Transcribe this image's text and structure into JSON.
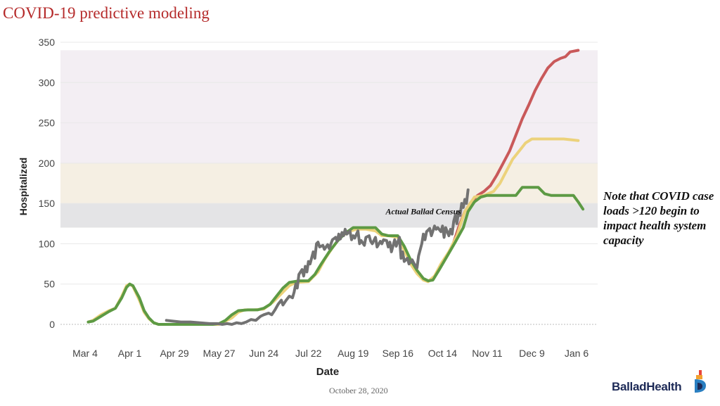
{
  "title": "COVID-19 predictive modeling",
  "note": "Note that COVID case loads >120 begin to impact health system capacity",
  "footer_date": "October 28, 2020",
  "logo": {
    "text": "BalladHealth",
    "lettering": "Ballad Health"
  },
  "colors": {
    "title": "#b52a2a",
    "band_high": "#f3eef3",
    "band_mid": "#f5efe3",
    "band_low": "#e4e4e6",
    "red": "#c9595a",
    "yellow": "#ecd27b",
    "green": "#5d9a44",
    "gray": "#727272"
  },
  "chart_data": {
    "type": "line",
    "title": "COVID-19 predictive modeling",
    "xlabel": "Date",
    "ylabel": "Hospitalized",
    "x_unit": "days since Mar 4, 2020",
    "xlim": [
      0,
      308
    ],
    "ylim": [
      0,
      350
    ],
    "yticks": [
      0,
      50,
      100,
      150,
      200,
      250,
      300,
      350
    ],
    "xticks": [
      {
        "label": "Mar 4",
        "x": 0
      },
      {
        "label": "Apr 1",
        "x": 28
      },
      {
        "label": "Apr 29",
        "x": 56
      },
      {
        "label": "May 27",
        "x": 84
      },
      {
        "label": "Jun 24",
        "x": 112
      },
      {
        "label": "Jul 22",
        "x": 140
      },
      {
        "label": "Aug 19",
        "x": 168
      },
      {
        "label": "Sep 16",
        "x": 196
      },
      {
        "label": "Oct 14",
        "x": 224
      },
      {
        "label": "Nov 11",
        "x": 252
      },
      {
        "label": "Dec 9",
        "x": 280
      },
      {
        "label": "Jan 6",
        "x": 308
      }
    ],
    "bands": [
      {
        "from": 120,
        "to": 150,
        "color": "#e4e4e6"
      },
      {
        "from": 150,
        "to": 200,
        "color": "#f5efe3"
      },
      {
        "from": 200,
        "to": 340,
        "color": "#f3eef3"
      }
    ],
    "annotations": [
      {
        "text": "Actual Ballad Census",
        "x": 212,
        "y": 140
      }
    ],
    "grid": true,
    "series": [
      {
        "name": "Red projection",
        "color": "#c9595a",
        "points": [
          [
            230,
            96
          ],
          [
            234,
            120
          ],
          [
            238,
            140
          ],
          [
            242,
            152
          ],
          [
            246,
            160
          ],
          [
            250,
            165
          ],
          [
            254,
            172
          ],
          [
            258,
            185
          ],
          [
            262,
            200
          ],
          [
            266,
            215
          ],
          [
            270,
            235
          ],
          [
            274,
            255
          ],
          [
            278,
            272
          ],
          [
            282,
            290
          ],
          [
            286,
            305
          ],
          [
            290,
            318
          ],
          [
            294,
            326
          ],
          [
            298,
            330
          ],
          [
            301,
            332
          ],
          [
            304,
            338
          ],
          [
            309,
            340
          ]
        ]
      },
      {
        "name": "Yellow projection",
        "color": "#ecd27b",
        "points": [
          [
            2,
            3
          ],
          [
            5,
            5
          ],
          [
            10,
            12
          ],
          [
            15,
            17
          ],
          [
            19,
            20
          ],
          [
            23,
            35
          ],
          [
            26,
            48
          ],
          [
            28,
            50
          ],
          [
            30,
            47
          ],
          [
            34,
            30
          ],
          [
            37,
            15
          ],
          [
            40,
            7
          ],
          [
            43,
            2
          ],
          [
            46,
            0
          ],
          [
            60,
            0
          ],
          [
            84,
            0
          ],
          [
            92,
            8
          ],
          [
            96,
            15
          ],
          [
            100,
            18
          ],
          [
            106,
            18
          ],
          [
            112,
            19
          ],
          [
            118,
            28
          ],
          [
            124,
            40
          ],
          [
            128,
            48
          ],
          [
            132,
            52
          ],
          [
            140,
            53
          ],
          [
            146,
            65
          ],
          [
            150,
            80
          ],
          [
            155,
            95
          ],
          [
            160,
            108
          ],
          [
            165,
            115
          ],
          [
            170,
            118
          ],
          [
            176,
            118
          ],
          [
            182,
            116
          ],
          [
            186,
            110
          ],
          [
            190,
            110
          ],
          [
            196,
            108
          ],
          [
            200,
            92
          ],
          [
            204,
            75
          ],
          [
            208,
            63
          ],
          [
            212,
            55
          ],
          [
            215,
            53
          ],
          [
            219,
            60
          ],
          [
            223,
            75
          ],
          [
            228,
            90
          ],
          [
            233,
            110
          ],
          [
            238,
            140
          ],
          [
            244,
            158
          ],
          [
            250,
            160
          ],
          [
            256,
            165
          ],
          [
            260,
            175
          ],
          [
            264,
            190
          ],
          [
            268,
            205
          ],
          [
            272,
            215
          ],
          [
            276,
            225
          ],
          [
            280,
            230
          ],
          [
            290,
            230
          ],
          [
            300,
            230
          ],
          [
            309,
            228
          ]
        ]
      },
      {
        "name": "Green projection",
        "color": "#5d9a44",
        "points": [
          [
            2,
            3
          ],
          [
            5,
            4
          ],
          [
            10,
            10
          ],
          [
            15,
            16
          ],
          [
            19,
            20
          ],
          [
            23,
            33
          ],
          [
            26,
            46
          ],
          [
            28,
            50
          ],
          [
            30,
            48
          ],
          [
            34,
            33
          ],
          [
            37,
            17
          ],
          [
            40,
            8
          ],
          [
            43,
            2
          ],
          [
            46,
            0
          ],
          [
            60,
            0
          ],
          [
            80,
            0
          ],
          [
            84,
            1
          ],
          [
            88,
            5
          ],
          [
            92,
            12
          ],
          [
            96,
            17
          ],
          [
            102,
            18
          ],
          [
            108,
            18
          ],
          [
            112,
            20
          ],
          [
            116,
            25
          ],
          [
            120,
            35
          ],
          [
            124,
            45
          ],
          [
            128,
            52
          ],
          [
            134,
            54
          ],
          [
            140,
            54
          ],
          [
            144,
            62
          ],
          [
            148,
            75
          ],
          [
            153,
            90
          ],
          [
            158,
            103
          ],
          [
            163,
            113
          ],
          [
            168,
            120
          ],
          [
            176,
            120
          ],
          [
            182,
            120
          ],
          [
            186,
            112
          ],
          [
            190,
            110
          ],
          [
            196,
            110
          ],
          [
            200,
            97
          ],
          [
            204,
            80
          ],
          [
            208,
            67
          ],
          [
            212,
            57
          ],
          [
            215,
            54
          ],
          [
            218,
            55
          ],
          [
            222,
            68
          ],
          [
            227,
            85
          ],
          [
            232,
            102
          ],
          [
            237,
            120
          ],
          [
            240,
            140
          ],
          [
            244,
            152
          ],
          [
            248,
            158
          ],
          [
            252,
            160
          ],
          [
            260,
            160
          ],
          [
            270,
            160
          ],
          [
            274,
            170
          ],
          [
            284,
            170
          ],
          [
            288,
            162
          ],
          [
            292,
            160
          ],
          [
            300,
            160
          ],
          [
            306,
            160
          ],
          [
            309,
            152
          ],
          [
            312,
            143
          ]
        ]
      },
      {
        "name": "Actual Ballad Census",
        "color": "#727272",
        "points": [
          [
            51,
            5
          ],
          [
            55,
            4
          ],
          [
            60,
            3
          ],
          [
            66,
            3
          ],
          [
            72,
            2
          ],
          [
            78,
            1
          ],
          [
            83,
            1
          ],
          [
            86,
            0
          ],
          [
            89,
            1
          ],
          [
            92,
            0
          ],
          [
            95,
            2
          ],
          [
            98,
            1
          ],
          [
            101,
            3
          ],
          [
            104,
            6
          ],
          [
            107,
            5
          ],
          [
            110,
            10
          ],
          [
            112,
            12
          ],
          [
            115,
            14
          ],
          [
            117,
            12
          ],
          [
            119,
            18
          ],
          [
            121,
            25
          ],
          [
            123,
            30
          ],
          [
            124,
            24
          ],
          [
            126,
            30
          ],
          [
            128,
            35
          ],
          [
            130,
            33
          ],
          [
            131,
            40
          ],
          [
            132,
            50
          ],
          [
            133,
            45
          ],
          [
            134,
            62
          ],
          [
            136,
            68
          ],
          [
            137,
            60
          ],
          [
            138,
            72
          ],
          [
            139,
            65
          ],
          [
            140,
            78
          ],
          [
            141,
            75
          ],
          [
            143,
            90
          ],
          [
            144,
            82
          ],
          [
            145,
            100
          ],
          [
            146,
            102
          ],
          [
            147,
            96
          ],
          [
            149,
            98
          ],
          [
            150,
            93
          ],
          [
            152,
            99
          ],
          [
            153,
            94
          ],
          [
            155,
            105
          ],
          [
            157,
            108
          ],
          [
            158,
            103
          ],
          [
            159,
            112
          ],
          [
            160,
            106
          ],
          [
            161,
            114
          ],
          [
            162,
            110
          ],
          [
            163,
            118
          ],
          [
            164,
            112
          ],
          [
            166,
            116
          ],
          [
            167,
            105
          ],
          [
            168,
            110
          ],
          [
            169,
            107
          ],
          [
            171,
            116
          ],
          [
            172,
            100
          ],
          [
            173,
            104
          ],
          [
            175,
            98
          ],
          [
            176,
            108
          ],
          [
            178,
            110
          ],
          [
            179,
            103
          ],
          [
            180,
            100
          ],
          [
            182,
            108
          ],
          [
            183,
            96
          ],
          [
            185,
            103
          ],
          [
            186,
            100
          ],
          [
            187,
            105
          ],
          [
            189,
            104
          ],
          [
            190,
            96
          ],
          [
            191,
            102
          ],
          [
            192,
            90
          ],
          [
            194,
            105
          ],
          [
            195,
            97
          ],
          [
            197,
            108
          ],
          [
            198,
            82
          ],
          [
            199,
            90
          ],
          [
            200,
            78
          ],
          [
            202,
            82
          ],
          [
            203,
            75
          ],
          [
            205,
            80
          ],
          [
            206,
            76
          ],
          [
            208,
            70
          ],
          [
            209,
            85
          ],
          [
            211,
            100
          ],
          [
            212,
            112
          ],
          [
            213,
            105
          ],
          [
            214,
            115
          ],
          [
            216,
            119
          ],
          [
            217,
            110
          ],
          [
            219,
            122
          ],
          [
            220,
            118
          ],
          [
            221,
            120
          ],
          [
            223,
            115
          ],
          [
            224,
            122
          ],
          [
            225,
            108
          ],
          [
            226,
            120
          ],
          [
            228,
            110
          ],
          [
            229,
            118
          ],
          [
            230,
            112
          ],
          [
            231,
            128
          ],
          [
            232,
            135
          ],
          [
            233,
            125
          ],
          [
            234,
            140
          ],
          [
            235,
            135
          ],
          [
            236,
            150
          ],
          [
            237,
            145
          ],
          [
            238,
            155
          ],
          [
            239,
            150
          ],
          [
            240,
            167
          ]
        ]
      }
    ]
  }
}
